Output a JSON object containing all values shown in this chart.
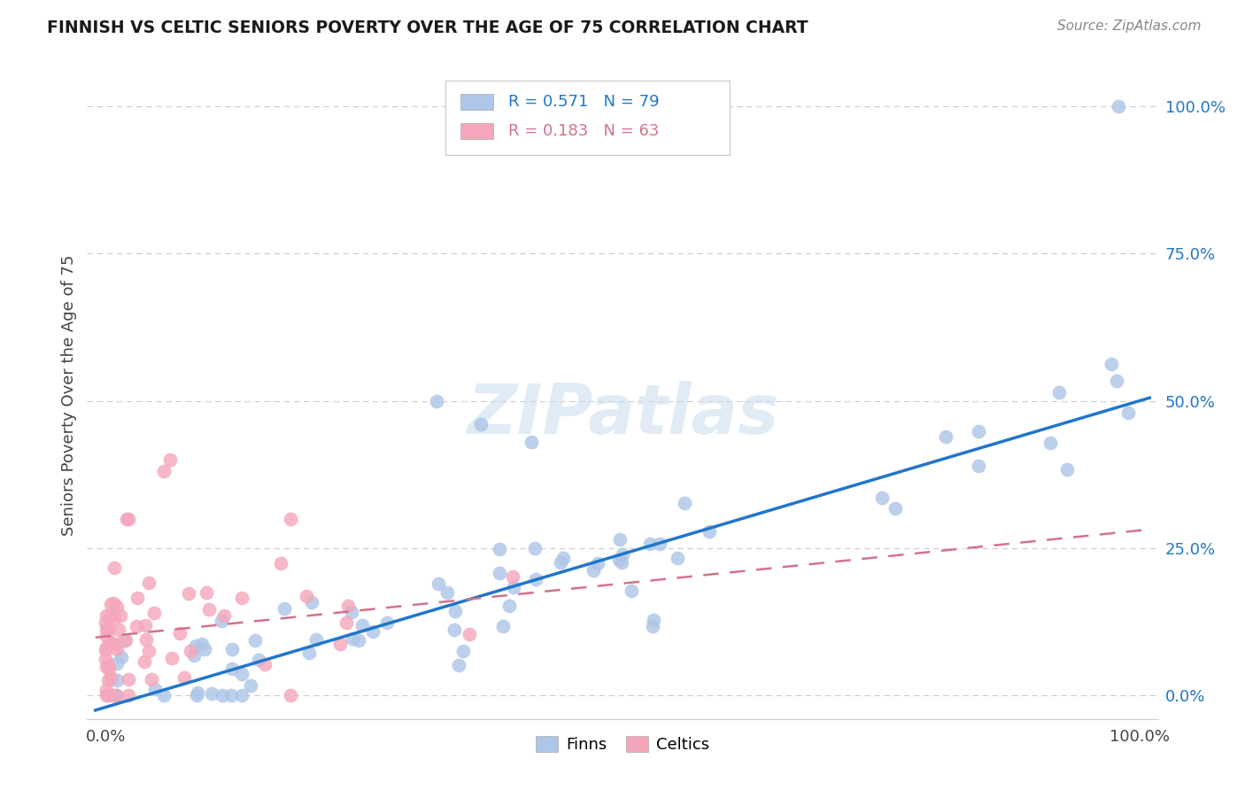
{
  "title": "FINNISH VS CELTIC SENIORS POVERTY OVER THE AGE OF 75 CORRELATION CHART",
  "source": "Source: ZipAtlas.com",
  "ylabel": "Seniors Poverty Over the Age of 75",
  "finns_R": 0.571,
  "finns_N": 79,
  "celtics_R": 0.183,
  "celtics_N": 63,
  "finns_color": "#aec6e8",
  "celtics_color": "#f4a7bb",
  "finns_line_color": "#2176c9",
  "celtics_line_color": "#d4728a",
  "grid_color": "#cccccc",
  "background_color": "#ffffff",
  "watermark": "ZIPatlas",
  "legend_finns_label": "Finns",
  "legend_celtics_label": "Celtics",
  "ytick_vals": [
    0.0,
    0.25,
    0.5,
    0.75,
    1.0
  ],
  "ytick_labels": [
    "0.0%",
    "25.0%",
    "50.0%",
    "75.0%",
    "100.0%"
  ],
  "xtick_vals": [
    0.0,
    1.0
  ],
  "xtick_labels": [
    "0.0%",
    "100.0%"
  ]
}
